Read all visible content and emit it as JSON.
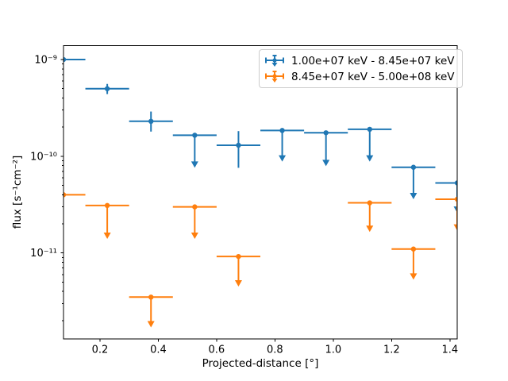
{
  "chart_data": {
    "type": "scatter",
    "title": "",
    "xlabel": "Projected-distance [°]",
    "ylabel": "flux [s⁻¹cm⁻²]",
    "grid": false,
    "legend_position": "upper right",
    "xlim": [
      0.075,
      1.425
    ],
    "ylim_log10": [
      -11.89,
      -8.857
    ],
    "x_ticks": [
      "0.2",
      "0.4",
      "0.6",
      "0.8",
      "1.0",
      "1.2",
      "1.4"
    ],
    "y_ticks": [
      {
        "label": "10⁻⁹",
        "log": -9
      },
      {
        "label": "10⁻¹⁰",
        "log": -10
      },
      {
        "label": "10⁻¹¹",
        "log": -11
      }
    ],
    "bin_half_width": 0.075,
    "series": [
      {
        "name": "1.00e+07 keV - 8.45e+07 keV",
        "color": "#1f77b4",
        "points": [
          {
            "x": 0.075,
            "flux": 1e-09,
            "kind": "point"
          },
          {
            "x": 0.225,
            "flux": 5e-10,
            "err_lo": 4.4e-10,
            "err_hi": 5.6e-10,
            "kind": "point"
          },
          {
            "x": 0.375,
            "flux": 2.3e-10,
            "err_lo": 1.8e-10,
            "err_hi": 2.9e-10,
            "kind": "point"
          },
          {
            "x": 0.525,
            "flux": 1.65e-10,
            "limit": 7.6e-11,
            "kind": "uplim"
          },
          {
            "x": 0.675,
            "flux": 1.3e-10,
            "err_lo": 7.6e-11,
            "err_hi": 1.82e-10,
            "kind": "point"
          },
          {
            "x": 0.825,
            "flux": 1.85e-10,
            "limit": 8.8e-11,
            "kind": "uplim"
          },
          {
            "x": 0.975,
            "flux": 1.75e-10,
            "limit": 7.9e-11,
            "kind": "uplim"
          },
          {
            "x": 1.125,
            "flux": 1.9e-10,
            "limit": 8.8e-11,
            "kind": "uplim"
          },
          {
            "x": 1.275,
            "flux": 7.7e-11,
            "limit": 3.6e-11,
            "kind": "uplim"
          },
          {
            "x": 1.425,
            "flux": 5.3e-11,
            "limit": 2.6e-11,
            "kind": "uplim"
          }
        ]
      },
      {
        "name": "8.45e+07 keV - 5.00e+08 keV",
        "color": "#ff7f0e",
        "points": [
          {
            "x": 0.075,
            "flux": 4e-11,
            "kind": "point"
          },
          {
            "x": 0.225,
            "flux": 3.1e-11,
            "limit": 1.4e-11,
            "kind": "uplim"
          },
          {
            "x": 0.375,
            "flux": 3.5e-12,
            "limit": 1.7e-12,
            "kind": "uplim"
          },
          {
            "x": 0.525,
            "flux": 3e-11,
            "limit": 1.4e-11,
            "kind": "uplim"
          },
          {
            "x": 0.675,
            "flux": 9.2e-12,
            "limit": 4.5e-12,
            "kind": "uplim"
          },
          {
            "x": 1.125,
            "flux": 3.3e-11,
            "limit": 1.65e-11,
            "kind": "uplim"
          },
          {
            "x": 1.275,
            "flux": 1.1e-11,
            "limit": 5.3e-12,
            "kind": "uplim"
          },
          {
            "x": 1.425,
            "flux": 3.6e-11,
            "limit": 1.7e-11,
            "kind": "uplim"
          }
        ]
      }
    ]
  }
}
